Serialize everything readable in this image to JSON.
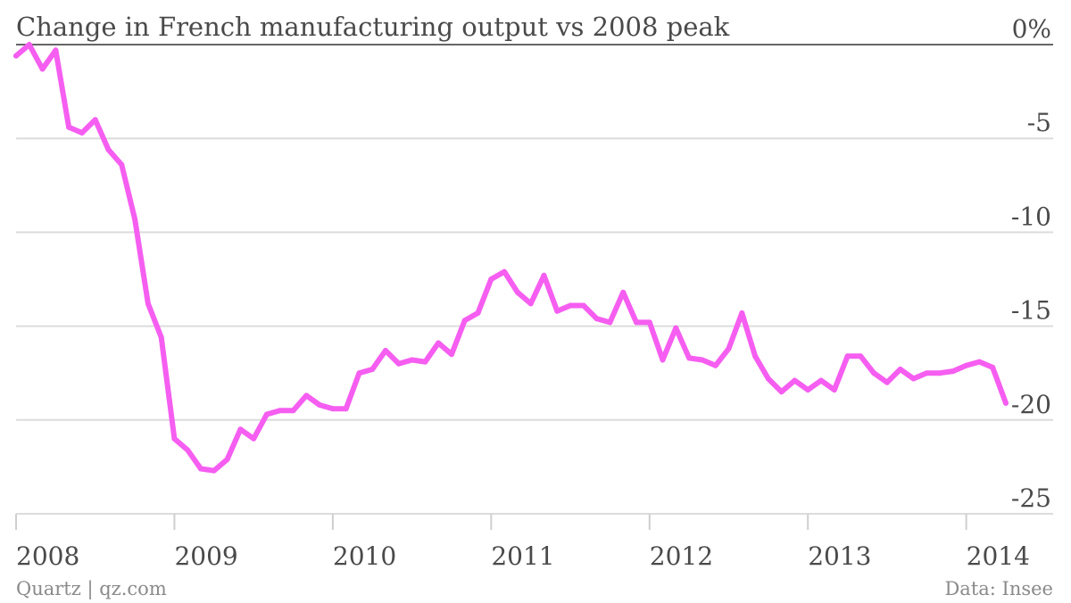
{
  "colors": {
    "line": "#f55ef0",
    "text": "#4a4a4a",
    "footer": "#8a8a8a",
    "grid": "#dcdcdc"
  },
  "chart_data": {
    "type": "line",
    "title": "Change in French manufacturing output vs 2008 peak",
    "x_start": "2008-01",
    "x_end": "2014-04",
    "ylim": [
      -25,
      0
    ],
    "yticks": [
      0,
      -5,
      -10,
      -15,
      -20,
      -25
    ],
    "ytick_labels": [
      "0%",
      "-5",
      "-10",
      "-15",
      "-20",
      "-25"
    ],
    "xticks": [
      "2008-01",
      "2009-01",
      "2010-01",
      "2011-01",
      "2012-01",
      "2013-01",
      "2014-01"
    ],
    "xtick_labels": [
      "2008",
      "2009",
      "2010",
      "2011",
      "2012",
      "2013",
      "2014"
    ],
    "grid": true,
    "series": [
      {
        "name": "",
        "x": [
          "2008-01",
          "2008-02",
          "2008-03",
          "2008-04",
          "2008-05",
          "2008-06",
          "2008-07",
          "2008-08",
          "2008-09",
          "2008-10",
          "2008-11",
          "2008-12",
          "2009-01",
          "2009-02",
          "2009-03",
          "2009-04",
          "2009-05",
          "2009-06",
          "2009-07",
          "2009-08",
          "2009-09",
          "2009-10",
          "2009-11",
          "2009-12",
          "2010-01",
          "2010-02",
          "2010-03",
          "2010-04",
          "2010-05",
          "2010-06",
          "2010-07",
          "2010-08",
          "2010-09",
          "2010-10",
          "2010-11",
          "2010-12",
          "2011-01",
          "2011-02",
          "2011-03",
          "2011-04",
          "2011-05",
          "2011-06",
          "2011-07",
          "2011-08",
          "2011-09",
          "2011-10",
          "2011-11",
          "2011-12",
          "2012-01",
          "2012-02",
          "2012-03",
          "2012-04",
          "2012-05",
          "2012-06",
          "2012-07",
          "2012-08",
          "2012-09",
          "2012-10",
          "2012-11",
          "2012-12",
          "2013-01",
          "2013-02",
          "2013-03",
          "2013-04",
          "2013-05",
          "2013-06",
          "2013-07",
          "2013-08",
          "2013-09",
          "2013-10",
          "2013-11",
          "2013-12",
          "2014-01",
          "2014-02",
          "2014-03",
          "2014-04"
        ],
        "y": [
          -0.6,
          0,
          -1.3,
          -0.3,
          -4.4,
          -4.7,
          -4.0,
          -5.6,
          -6.4,
          -9.3,
          -13.8,
          -15.6,
          -21.0,
          -21.6,
          -22.6,
          -22.7,
          -22.1,
          -20.5,
          -21.0,
          -19.7,
          -19.5,
          -19.5,
          -18.7,
          -19.2,
          -19.4,
          -19.4,
          -17.5,
          -17.3,
          -16.3,
          -17.0,
          -16.8,
          -16.9,
          -15.9,
          -16.5,
          -14.7,
          -14.3,
          -12.5,
          -12.1,
          -13.2,
          -13.8,
          -12.3,
          -14.2,
          -13.9,
          -13.9,
          -14.6,
          -14.8,
          -13.2,
          -14.8,
          -14.8,
          -16.8,
          -15.1,
          -16.7,
          -16.8,
          -17.1,
          -16.2,
          -14.3,
          -16.6,
          -17.8,
          -18.5,
          -17.9,
          -18.4,
          -17.9,
          -18.4,
          -16.6,
          -16.6,
          -17.5,
          -18.0,
          -17.3,
          -17.8,
          -17.5,
          -17.5,
          -17.4,
          -17.1,
          -16.9,
          -17.2,
          -19.1
        ]
      }
    ]
  },
  "footer": {
    "left": "Quartz | qz.com",
    "right": "Data: Insee"
  }
}
